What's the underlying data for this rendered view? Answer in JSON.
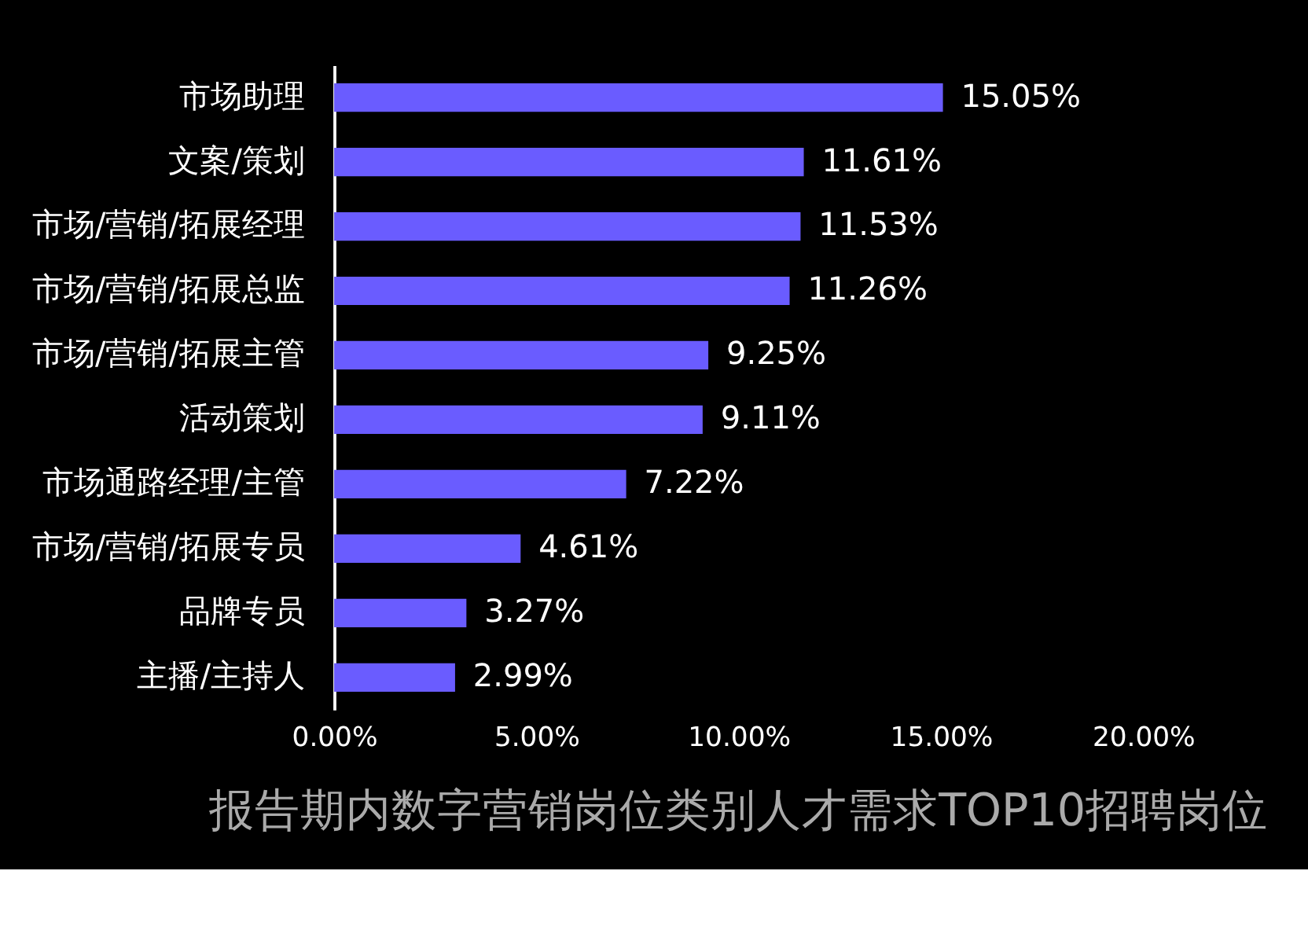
{
  "chart_data": {
    "type": "bar",
    "orientation": "horizontal",
    "title": "报告期内数字营销岗位类别人才需求TOP10招聘岗位",
    "categories": [
      "市场助理",
      "文案/策划",
      "市场/营销/拓展经理",
      "市场/营销/拓展总监",
      "市场/营销/拓展主管",
      "活动策划",
      "市场通路经理/主管",
      "市场/营销/拓展专员",
      "品牌专员",
      "主播/主持人"
    ],
    "series": [
      {
        "color": "#6a5cff",
        "values": [
          15.05,
          11.61,
          11.53,
          11.26,
          9.25,
          9.11,
          7.22,
          4.61,
          3.27,
          2.99
        ]
      }
    ],
    "value_labels": [
      "15.05%",
      "11.61%",
      "11.53%",
      "11.26%",
      "9.25%",
      "9.11%",
      "7.22%",
      "4.61%",
      "3.27%",
      "2.99%"
    ],
    "xlim": [
      0,
      20
    ],
    "xticks": [
      {
        "value": 0,
        "label": "0.00%"
      },
      {
        "value": 5,
        "label": "5.00%"
      },
      {
        "value": 10,
        "label": "10.00%"
      },
      {
        "value": 15,
        "label": "15.00%"
      },
      {
        "value": 20,
        "label": "20.00%"
      }
    ],
    "grid": false
  }
}
